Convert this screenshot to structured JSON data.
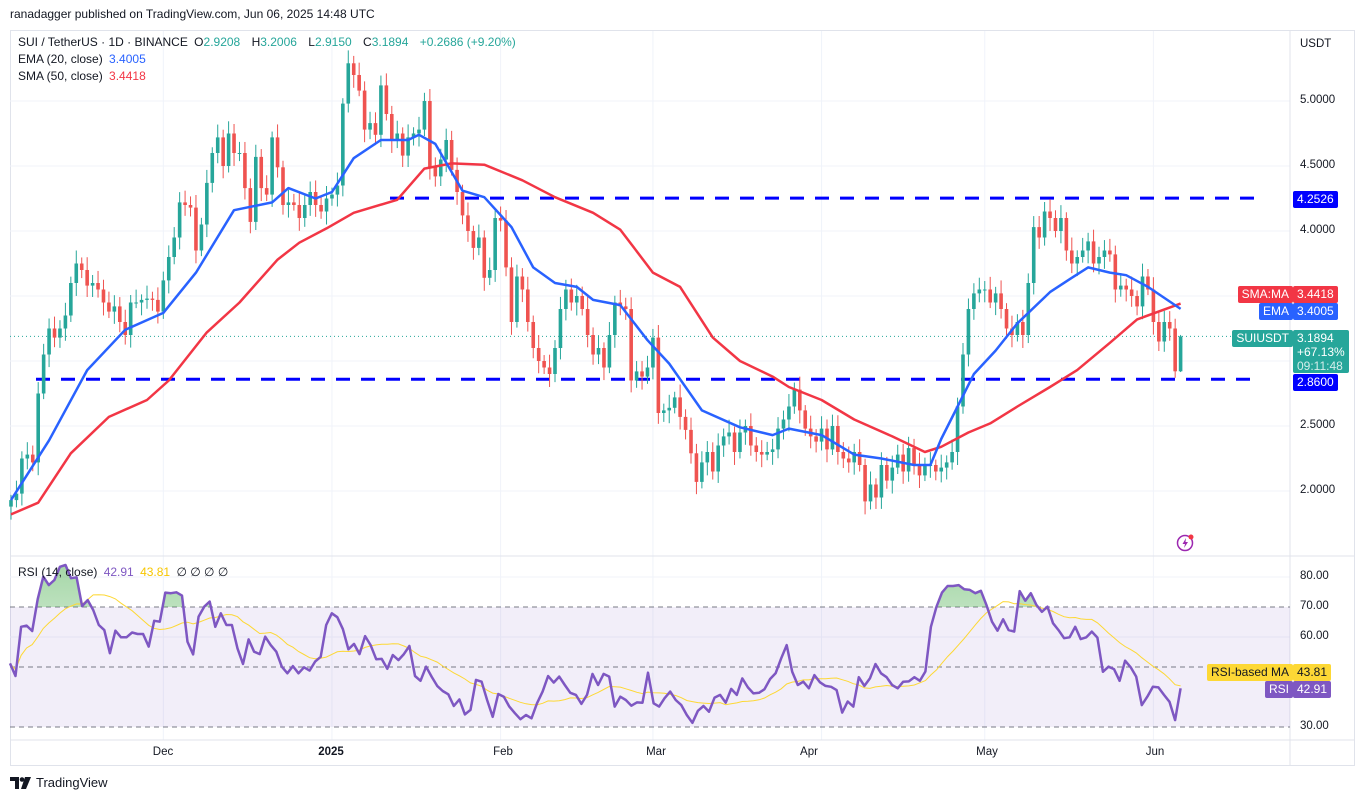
{
  "header": {
    "published": "ranadagger published on TradingView.com, Jun 06, 2025 14:48 UTC"
  },
  "symbol": {
    "title": "SUI / TetherUS · 1D · BINANCE",
    "o_label": "O",
    "open": "2.9208",
    "h_label": "H",
    "high": "3.2006",
    "l_label": "L",
    "low": "2.9150",
    "c_label": "C",
    "close": "3.1894",
    "change": "+0.2686 (+9.20%)"
  },
  "indicators": {
    "ema_label": "EMA (20, close)",
    "ema_value": "3.4005",
    "sma_label": "SMA (50, close)",
    "sma_value": "3.4418",
    "rsi_label": "RSI (14, close)",
    "rsi_value": "42.91",
    "rsi_ma_value": "43.81",
    "rsi_extra": "∅ ∅ ∅ ∅"
  },
  "price_axis": {
    "currency": "USDT",
    "ticks": [
      "5.0000",
      "4.5000",
      "4.0000",
      "2.5000",
      "2.0000"
    ]
  },
  "rsi_axis": {
    "ticks": [
      "80.00",
      "70.00",
      "60.00",
      "30.00"
    ]
  },
  "time_axis": {
    "labels": [
      "Dec",
      "2025",
      "Feb",
      "Mar",
      "Apr",
      "May",
      "Jun"
    ]
  },
  "badges": {
    "sma_name": "SMA:MA",
    "sma_value": "3.4418",
    "ema_name": "EMA",
    "ema_value": "3.4005",
    "symbol_name": "SUIUSDT",
    "last_price": "3.1894",
    "last_change": "+67.13%",
    "countdown": "09:11:48",
    "resistance": "4.2526",
    "support": "2.8600",
    "rsi_ma_name": "RSI-based MA",
    "rsi_ma_value": "43.81",
    "rsi_name": "RSI",
    "rsi_value": "42.91"
  },
  "footer": {
    "brand": "TradingView"
  },
  "colors": {
    "up": "#26a69a",
    "down": "#ef5350",
    "ema": "#2962ff",
    "sma": "#f23645",
    "levels": "#0000ff",
    "rsi": "#7e57c2",
    "rsi_ma": "#fdd835"
  },
  "icons": {
    "flash": "flash-icon",
    "logo": "tradingview-logo-icon"
  },
  "chart_data": {
    "type": "candlestick",
    "symbol": "SUIUSDT",
    "ylim": [
      1.65,
      5.45
    ],
    "horizontal_levels": [
      4.2526,
      2.86
    ],
    "last": {
      "open": 2.9208,
      "high": 3.2006,
      "low": 2.915,
      "close": 3.1894
    },
    "closes_by_month": [
      {
        "month": "2024-11",
        "first_day": 3,
        "close": [
          1.93,
          1.98,
          2.25,
          2.28,
          2.22,
          2.75,
          3.05,
          3.25,
          3.18,
          3.25,
          3.35,
          3.6,
          3.75,
          3.7,
          3.58,
          3.6,
          3.55,
          3.45,
          3.38,
          3.42,
          3.3,
          3.2,
          3.45,
          3.45,
          3.47,
          3.48,
          3.47,
          3.38
        ]
      },
      {
        "month": "2024-12",
        "first_day": 1,
        "close": [
          3.62,
          3.8,
          3.95,
          4.22,
          4.2,
          4.18,
          3.85,
          4.05,
          4.37,
          4.6,
          4.72,
          4.5,
          4.75,
          4.6,
          4.6,
          4.33,
          4.07,
          4.57,
          4.33,
          4.28,
          4.72,
          4.49,
          4.2,
          4.22,
          4.2,
          4.1,
          4.2,
          4.3,
          4.2,
          4.15,
          4.25
        ]
      },
      {
        "month": "2025-01",
        "first_day": 1,
        "close": [
          4.28,
          4.35,
          4.98,
          5.29,
          5.2,
          5.08,
          4.78,
          4.83,
          4.74,
          5.12,
          4.9,
          4.7,
          4.75,
          4.58,
          4.72,
          4.75,
          4.78,
          5.0,
          4.49,
          4.42,
          4.55,
          4.7,
          4.47,
          4.3,
          4.12,
          4.0,
          3.87,
          3.95,
          3.64,
          3.7,
          4.1
        ]
      },
      {
        "month": "2025-02",
        "first_day": 1,
        "close": [
          4.08,
          3.72,
          3.3,
          3.65,
          3.55,
          3.3,
          3.1,
          3.0,
          2.95,
          2.9,
          3.1,
          3.4,
          3.55,
          3.45,
          3.5,
          3.4,
          3.2,
          3.05,
          3.1,
          2.95,
          3.2,
          3.45,
          3.42,
          3.4,
          2.85,
          2.92,
          2.88,
          2.95
        ]
      },
      {
        "month": "2025-03",
        "first_day": 1,
        "close": [
          3.18,
          2.6,
          2.62,
          2.64,
          2.72,
          2.57,
          2.47,
          2.29,
          2.07,
          2.22,
          2.3,
          2.15,
          2.35,
          2.42,
          2.45,
          2.3,
          2.45,
          2.5,
          2.35,
          2.3,
          2.28,
          2.3,
          2.32,
          2.48,
          2.55,
          2.65,
          2.78,
          2.62,
          2.48,
          2.42,
          2.38
        ]
      },
      {
        "month": "2025-04",
        "first_day": 1,
        "close": [
          2.48,
          2.32,
          2.5,
          2.3,
          2.25,
          2.22,
          2.3,
          2.2,
          1.92,
          2.05,
          1.95,
          2.2,
          2.08,
          2.18,
          2.28,
          2.15,
          2.33,
          2.2,
          2.12,
          2.2,
          2.2,
          2.15,
          2.18,
          2.22,
          2.3,
          2.65,
          3.05,
          3.4,
          3.52,
          3.55
        ]
      },
      {
        "month": "2025-05",
        "first_day": 1,
        "close": [
          3.55,
          3.45,
          3.52,
          3.4,
          3.25,
          3.2,
          3.3,
          3.2,
          3.6,
          4.03,
          3.95,
          4.15,
          4.1,
          4.0,
          4.1,
          3.85,
          3.75,
          3.8,
          3.85,
          3.92,
          3.75,
          3.8,
          3.85,
          3.82,
          3.55,
          3.58,
          3.55,
          3.5,
          3.42,
          3.65,
          3.55
        ]
      },
      {
        "month": "2025-06",
        "first_day": 1,
        "close": [
          3.3,
          3.15,
          3.3,
          3.25,
          2.9208,
          3.1894
        ]
      }
    ],
    "ema20": [
      [
        "2024-11-03",
        1.93
      ],
      [
        "2024-11-10",
        2.39
      ],
      [
        "2024-11-17",
        2.93
      ],
      [
        "2024-11-24",
        3.24
      ],
      [
        "2024-12-01",
        3.37
      ],
      [
        "2024-12-07",
        3.68
      ],
      [
        "2024-12-14",
        4.16
      ],
      [
        "2024-12-21",
        4.22
      ],
      [
        "2024-12-24",
        4.33
      ],
      [
        "2024-12-29",
        4.25
      ],
      [
        "2025-01-01",
        4.3
      ],
      [
        "2025-01-05",
        4.56
      ],
      [
        "2025-01-10",
        4.7
      ],
      [
        "2025-01-15",
        4.7
      ],
      [
        "2025-01-17",
        4.74
      ],
      [
        "2025-01-20",
        4.67
      ],
      [
        "2025-01-25",
        4.31
      ],
      [
        "2025-01-29",
        4.26
      ],
      [
        "2025-02-03",
        4.03
      ],
      [
        "2025-02-07",
        3.72
      ],
      [
        "2025-02-11",
        3.6
      ],
      [
        "2025-02-15",
        3.57
      ],
      [
        "2025-02-18",
        3.47
      ],
      [
        "2025-02-23",
        3.43
      ],
      [
        "2025-02-28",
        3.16
      ],
      [
        "2025-03-04",
        2.98
      ],
      [
        "2025-03-10",
        2.62
      ],
      [
        "2025-03-17",
        2.49
      ],
      [
        "2025-03-23",
        2.43
      ],
      [
        "2025-03-26",
        2.48
      ],
      [
        "2025-04-01",
        2.43
      ],
      [
        "2025-04-07",
        2.28
      ],
      [
        "2025-04-12",
        2.25
      ],
      [
        "2025-04-18",
        2.2
      ],
      [
        "2025-04-21",
        2.2
      ],
      [
        "2025-04-23",
        2.4
      ],
      [
        "2025-04-26",
        2.65
      ],
      [
        "2025-04-29",
        2.9
      ],
      [
        "2025-05-03",
        3.08
      ],
      [
        "2025-05-07",
        3.29
      ],
      [
        "2025-05-13",
        3.53
      ],
      [
        "2025-05-17",
        3.64
      ],
      [
        "2025-05-20",
        3.72
      ],
      [
        "2025-05-24",
        3.68
      ],
      [
        "2025-05-27",
        3.66
      ],
      [
        "2025-05-31",
        3.57
      ],
      [
        "2025-06-06",
        3.4005
      ]
    ],
    "sma50": [
      [
        "2024-11-03",
        1.82
      ],
      [
        "2024-11-08",
        1.91
      ],
      [
        "2024-11-14",
        2.29
      ],
      [
        "2024-11-21",
        2.57
      ],
      [
        "2024-11-28",
        2.7
      ],
      [
        "2024-12-02",
        2.85
      ],
      [
        "2024-12-09",
        3.22
      ],
      [
        "2024-12-15",
        3.45
      ],
      [
        "2024-12-22",
        3.78
      ],
      [
        "2024-12-26",
        3.91
      ],
      [
        "2024-12-31",
        4.02
      ],
      [
        "2025-01-05",
        4.14
      ],
      [
        "2025-01-13",
        4.24
      ],
      [
        "2025-01-18",
        4.48
      ],
      [
        "2025-01-23",
        4.52
      ],
      [
        "2025-01-29",
        4.51
      ],
      [
        "2025-02-05",
        4.39
      ],
      [
        "2025-02-11",
        4.26
      ],
      [
        "2025-02-18",
        4.14
      ],
      [
        "2025-02-23",
        4.01
      ],
      [
        "2025-03-01",
        3.68
      ],
      [
        "2025-03-06",
        3.57
      ],
      [
        "2025-03-12",
        3.18
      ],
      [
        "2025-03-17",
        3.0
      ],
      [
        "2025-03-23",
        2.88
      ],
      [
        "2025-03-26",
        2.8
      ],
      [
        "2025-04-01",
        2.7
      ],
      [
        "2025-04-07",
        2.55
      ],
      [
        "2025-04-14",
        2.42
      ],
      [
        "2025-04-20",
        2.3
      ],
      [
        "2025-04-23",
        2.34
      ],
      [
        "2025-04-28",
        2.45
      ],
      [
        "2025-05-02",
        2.52
      ],
      [
        "2025-05-07",
        2.65
      ],
      [
        "2025-05-13",
        2.8
      ],
      [
        "2025-05-18",
        2.93
      ],
      [
        "2025-05-24",
        3.14
      ],
      [
        "2025-05-29",
        3.32
      ],
      [
        "2025-06-06",
        3.4418
      ]
    ],
    "rsi": {
      "ylim": [
        25,
        88
      ],
      "overbought": 70,
      "oversold": 30,
      "middle": 50,
      "ma_length": 14,
      "values": [
        51.2,
        47,
        63.4,
        63.8,
        62,
        72.6,
        80.1,
        77.3,
        79,
        83.4,
        84,
        79.6,
        79.9,
        70.3,
        72.3,
        69,
        64,
        62.3,
        54.6,
        62.1,
        59.9,
        59.9,
        61.5,
        61,
        61,
        56.8,
        65.4,
        65.1,
        74.8,
        74.6,
        74.9,
        73.8,
        58.4,
        54.2,
        66.8,
        70.1,
        71.8,
        63.4,
        67.9,
        64,
        64,
        56.2,
        51,
        59.2,
        55.1,
        54.3,
        60.1,
        57.3,
        55.1,
        50.1,
        47.9,
        50.3,
        47.9,
        49.9,
        48.8,
        51.8,
        53.4,
        64,
        67.9,
        66.6,
        62.6,
        55.9,
        57.7,
        54.3,
        60.3,
        57.3,
        52.6,
        52.7,
        49.4,
        54,
        52.3,
        54.3,
        57,
        47,
        45.4,
        50.1,
        46.8,
        43.7,
        42,
        40.9,
        37,
        39.2,
        34.2,
        35.7,
        45.7,
        45.1,
        39,
        33.4,
        41,
        40.1,
        36.8,
        34.6,
        32.6,
        34,
        32.9,
        37.9,
        41.8,
        47,
        44.8,
        46.8,
        44,
        41.4,
        40.7,
        37.7,
        40.7,
        47.7,
        44,
        47.7,
        46.8,
        36.8,
        40.1,
        39,
        37.1,
        38.2,
        38.1,
        48.1,
        37.9,
        36.8,
        39.6,
        41.8,
        39,
        37.3,
        34,
        31.4,
        35.4,
        37,
        35.1,
        39.8,
        40.7,
        38.1,
        42.7,
        40.7,
        46.2,
        43.2,
        41.2,
        41.4,
        42.6,
        46,
        47.9,
        52.9,
        57.3,
        48.4,
        44,
        45.1,
        42.9,
        47.3,
        44.9,
        43.7,
        43.4,
        42.3,
        34.8,
        38.5,
        36.8,
        46.6,
        43.7,
        46.2,
        51,
        47.9,
        46.6,
        44,
        42.9,
        45.1,
        45.2,
        46.6,
        45.4,
        48.5,
        63.4,
        70.1,
        74.8,
        77,
        77,
        77.3,
        75.9,
        75.7,
        74.6,
        75.4,
        70.7,
        65.1,
        62.1,
        65.9,
        62.3,
        61.8,
        75.3,
        72.1,
        74.6,
        70.7,
        68.4,
        70.1,
        64.6,
        62.3,
        59.6,
        59.9,
        63.4,
        59.3,
        59.9,
        61.8,
        59.8,
        48.4,
        50.1,
        49.3,
        45.4,
        52.1,
        49.9,
        46.8,
        37.3,
        40.1,
        43.4,
        43.2,
        40.7,
        38.4,
        32.3,
        42.91
      ]
    }
  }
}
